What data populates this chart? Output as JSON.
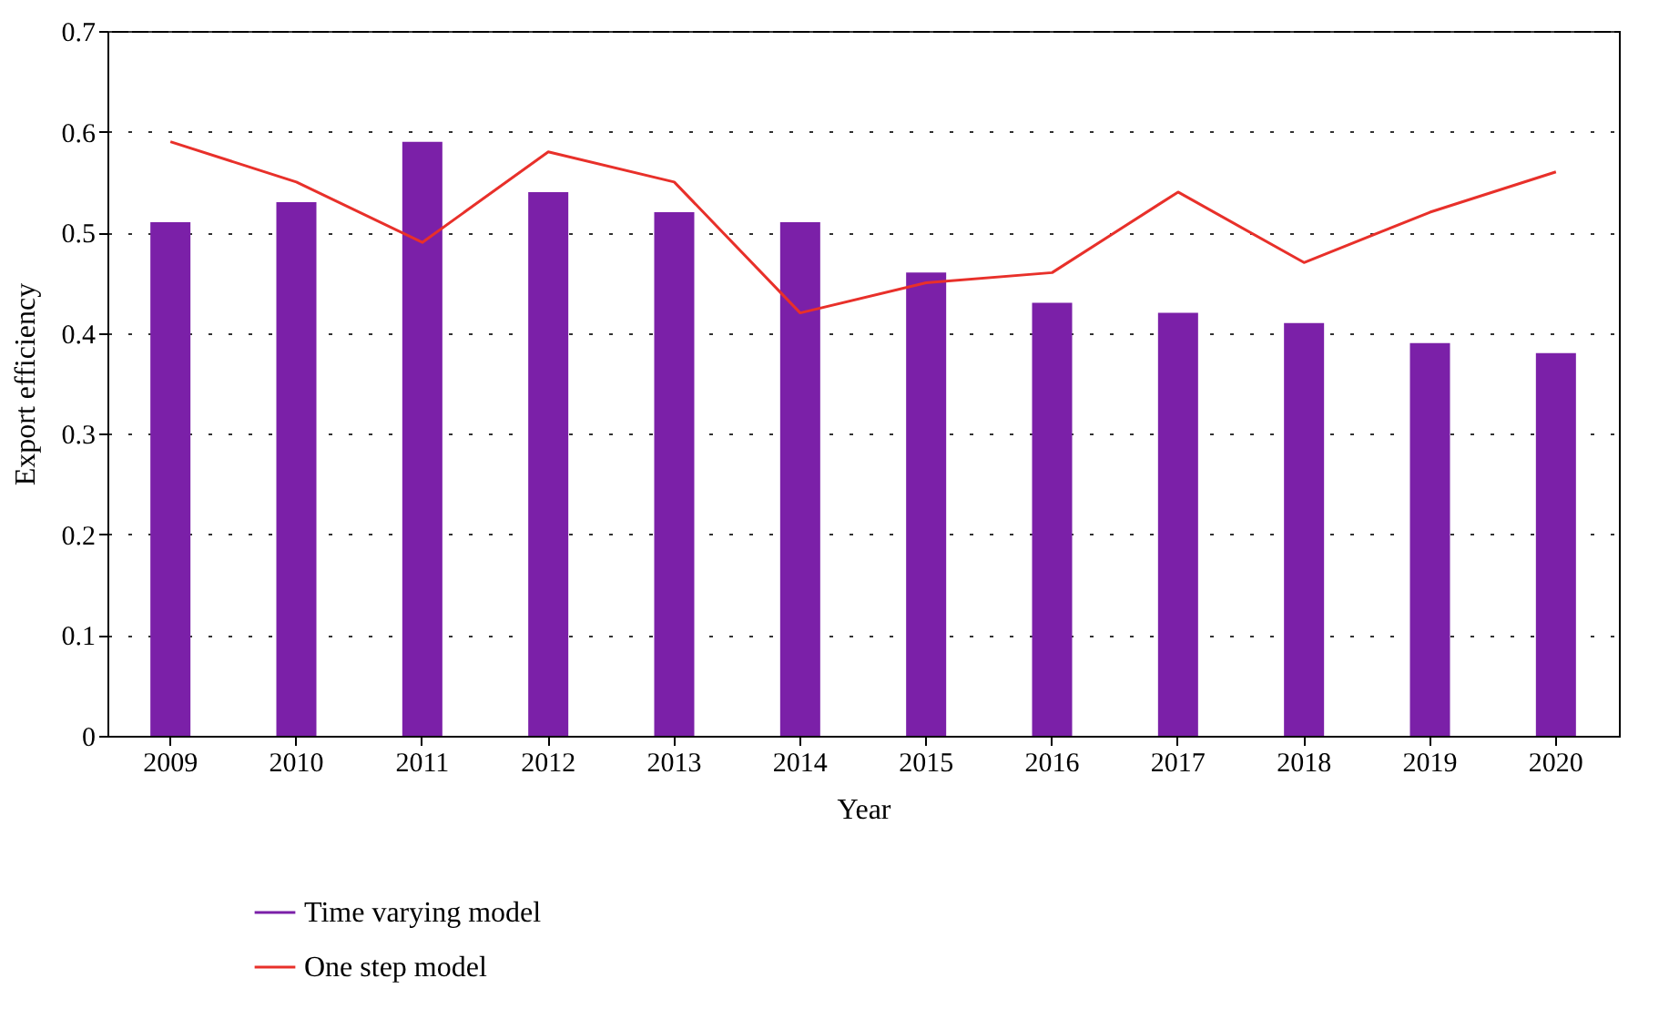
{
  "chart_data": {
    "type": "bar",
    "xlabel": "Year",
    "ylabel": "Export efficiency",
    "categories": [
      "2009",
      "2010",
      "2011",
      "2012",
      "2013",
      "2014",
      "2015",
      "2016",
      "2017",
      "2018",
      "2019",
      "2020"
    ],
    "series": [
      {
        "name": "Time varying model",
        "color": "#7b20a8",
        "values": [
          0.51,
          0.53,
          0.59,
          0.54,
          0.52,
          0.51,
          0.46,
          0.43,
          0.42,
          0.41,
          0.39,
          0.38
        ]
      },
      {
        "name": "One step model",
        "type": "line",
        "color": "#e8302a",
        "values": [
          0.59,
          0.55,
          0.49,
          0.58,
          0.55,
          0.42,
          0.45,
          0.46,
          0.54,
          0.47,
          0.52,
          0.56
        ]
      }
    ],
    "ylim": [
      0,
      0.7
    ],
    "yticks": [
      0,
      0.1,
      0.2,
      0.3,
      0.4,
      0.5,
      0.6,
      0.7
    ],
    "grid": "y",
    "legend": "bottom left",
    "line_style": "solid"
  }
}
